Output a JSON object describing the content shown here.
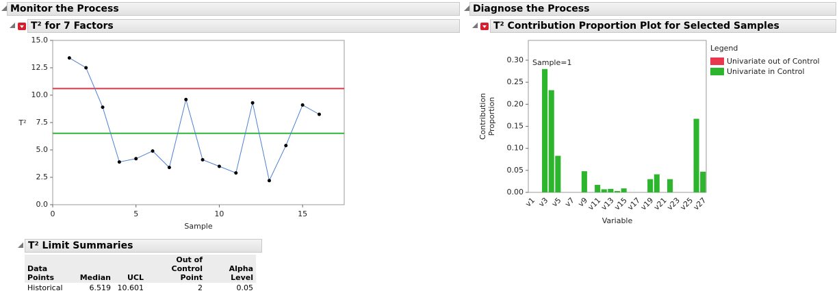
{
  "panels": {
    "left": "Monitor the Process",
    "right": "Diagnose the Process"
  },
  "chart_data": [
    {
      "type": "line",
      "title": "T² for 7 Factors",
      "xlabel": "Sample",
      "ylabel": "T²",
      "x": [
        1,
        2,
        3,
        4,
        5,
        6,
        7,
        8,
        9,
        10,
        11,
        12,
        13,
        14,
        15,
        16
      ],
      "values": [
        13.4,
        12.5,
        8.9,
        3.9,
        4.2,
        4.9,
        3.4,
        9.6,
        4.1,
        3.5,
        2.9,
        9.3,
        2.2,
        5.4,
        9.1,
        8.25
      ],
      "color": "#4a7fd4",
      "ucl_color": "#d8374a",
      "center_color": "#2fb536",
      "xlim": [
        0,
        17.5
      ],
      "xticks": [
        0,
        5,
        10,
        15
      ],
      "ylim": [
        0,
        15
      ],
      "yticks": [
        {
          "value": 0,
          "label": "0.0"
        },
        {
          "value": 2.5,
          "label": "2.5"
        },
        {
          "value": 5,
          "label": "5.0"
        },
        {
          "value": 7.5,
          "label": "7.5"
        },
        {
          "value": 10,
          "label": "10.0"
        },
        {
          "value": 12.5,
          "label": "12.5"
        },
        {
          "value": 15,
          "label": "15.0"
        }
      ]
    },
    {
      "type": "bar",
      "title": "T² Contribution Proportion Plot for Selected Samples",
      "xlabel": "Variable",
      "ylabel": "Contribution Proportion",
      "annotation": "Sample=1",
      "legend_title": "Legend",
      "categories": [
        "v1",
        null,
        "v3",
        null,
        "v5",
        null,
        "v7",
        null,
        "v9",
        null,
        "v11",
        null,
        "v13",
        null,
        "v15",
        null,
        "v17",
        null,
        "v19",
        null,
        "v21",
        null,
        "v23",
        null,
        "v25",
        null,
        "v27"
      ],
      "series": [
        {
          "name": "Univariate out of Control",
          "color": "#e8384f",
          "values": [
            null,
            null,
            null,
            null,
            null,
            null,
            null,
            null,
            null,
            null,
            null,
            null,
            null,
            null,
            null,
            null,
            null,
            null,
            null,
            null,
            null,
            null,
            null,
            null,
            null,
            null,
            null
          ]
        },
        {
          "name": "Univariate in Control",
          "color": "#2db52d",
          "values": [
            0,
            0,
            0.28,
            0.232,
            0.083,
            0,
            0,
            0,
            0.048,
            0,
            0.017,
            0.007,
            0.008,
            0.003,
            0.009,
            0,
            0,
            0,
            0.03,
            0.041,
            0,
            0.03,
            0,
            0,
            0,
            0.167,
            0.047
          ]
        }
      ],
      "ylim": [
        0,
        0.345
      ],
      "yticks": [
        {
          "value": 0,
          "label": "0.00"
        },
        {
          "value": 0.05,
          "label": "0.05"
        },
        {
          "value": 0.1,
          "label": "0.10"
        },
        {
          "value": 0.15,
          "label": "0.15"
        },
        {
          "value": 0.2,
          "label": "0.20"
        },
        {
          "value": 0.25,
          "label": "0.25"
        },
        {
          "value": 0.3,
          "label": "0.30"
        }
      ]
    }
  ],
  "table": {
    "title": "T² Limit Summaries",
    "columns": [
      "Data Points",
      "Median",
      "UCL",
      "Out of Control Point",
      "Alpha Level"
    ],
    "rows": [
      [
        "Historical",
        6.519,
        10.601,
        2,
        0.05
      ]
    ]
  }
}
